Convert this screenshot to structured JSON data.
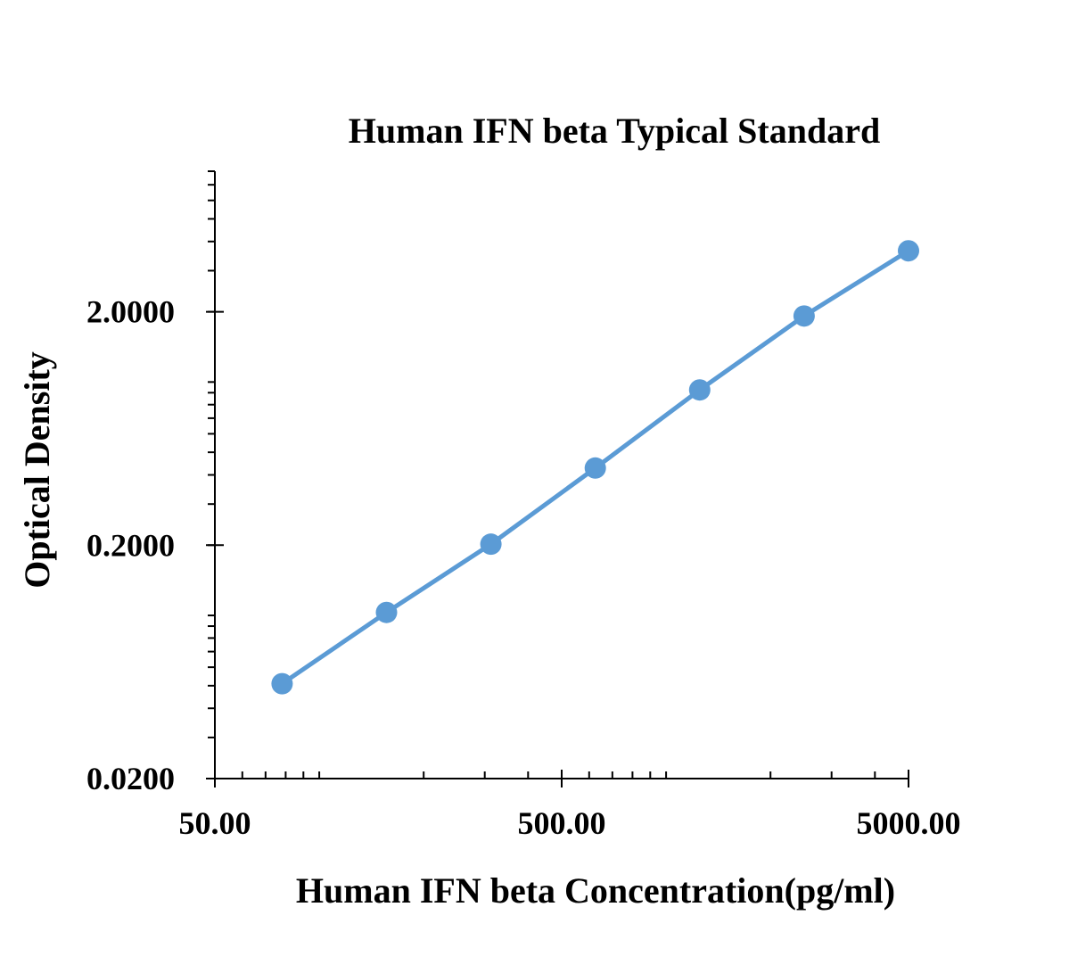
{
  "chart_data": {
    "type": "line",
    "title": "Human IFN beta Typical Standard",
    "xlabel": "Human IFN beta Concentration(pg/ml)",
    "ylabel": "Optical Density",
    "x_scale": "log",
    "y_scale": "log",
    "xlim": [
      50,
      5000
    ],
    "ylim": [
      0.02,
      8
    ],
    "x_ticks": [
      50,
      500,
      5000
    ],
    "x_tick_labels": [
      "50.00",
      "500.00",
      "5000.00"
    ],
    "y_ticks": [
      0.02,
      0.2,
      2
    ],
    "y_tick_labels": [
      "0.0200",
      "0.2000",
      "2.0000"
    ],
    "grid": false,
    "legend": "none",
    "series": [
      {
        "color": "#5b9bd5",
        "marker": "circle",
        "x": [
          78.13,
          156.25,
          312.5,
          625,
          1250,
          2500,
          5000
        ],
        "y": [
          0.051,
          0.103,
          0.202,
          0.428,
          0.925,
          1.918,
          3.65
        ]
      }
    ]
  }
}
